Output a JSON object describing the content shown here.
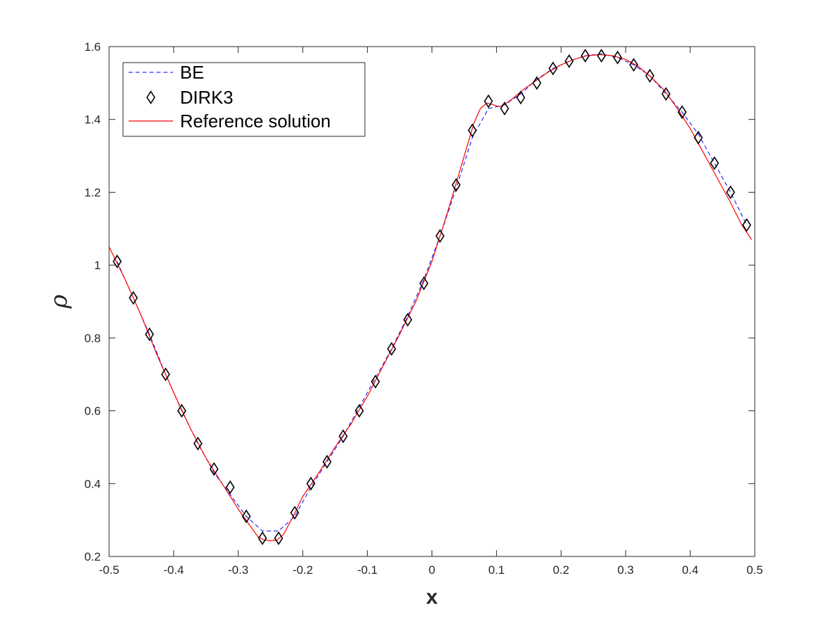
{
  "chart_data": {
    "type": "line",
    "xlabel": "x",
    "ylabel": "ρ",
    "xlim": [
      -0.5,
      0.5
    ],
    "ylim": [
      0.2,
      1.6
    ],
    "xticks": [
      "-0.5",
      "-0.4",
      "-0.3",
      "-0.2",
      "-0.1",
      "0",
      "0.1",
      "0.2",
      "0.3",
      "0.4",
      "0.5"
    ],
    "xtick_values": [
      -0.5,
      -0.4,
      -0.3,
      -0.2,
      -0.1,
      0,
      0.1,
      0.2,
      0.3,
      0.4,
      0.5
    ],
    "yticks": [
      "0.2",
      "0.4",
      "0.6",
      "0.8",
      "1",
      "1.2",
      "1.4",
      "1.6"
    ],
    "ytick_values": [
      0.2,
      0.4,
      0.6,
      0.8,
      1.0,
      1.2,
      1.4,
      1.6
    ],
    "grid": false,
    "legend_position": "top-left",
    "legend": [
      "BE",
      "DIRK3",
      "Reference solution"
    ],
    "series": [
      {
        "name": "BE",
        "style": "dashed",
        "color": "#0000ff",
        "x": [
          -0.4875,
          -0.4625,
          -0.4375,
          -0.4125,
          -0.3875,
          -0.3625,
          -0.3375,
          -0.3125,
          -0.2875,
          -0.2625,
          -0.2375,
          -0.2125,
          -0.1875,
          -0.1625,
          -0.1375,
          -0.1125,
          -0.0875,
          -0.0625,
          -0.0375,
          -0.0125,
          0.0125,
          0.0375,
          0.0625,
          0.0875,
          0.1125,
          0.1375,
          0.1625,
          0.1875,
          0.2125,
          0.2375,
          0.2625,
          0.2875,
          0.3125,
          0.3375,
          0.3625,
          0.3875,
          0.4125,
          0.4375,
          0.4625,
          0.4875
        ],
        "y": [
          1.01,
          0.91,
          0.81,
          0.7,
          0.6,
          0.51,
          0.43,
          0.37,
          0.31,
          0.27,
          0.27,
          0.31,
          0.39,
          0.46,
          0.53,
          0.61,
          0.69,
          0.77,
          0.86,
          0.96,
          1.08,
          1.21,
          1.35,
          1.43,
          1.44,
          1.47,
          1.51,
          1.54,
          1.56,
          1.575,
          1.58,
          1.57,
          1.55,
          1.52,
          1.47,
          1.42,
          1.36,
          1.28,
          1.2,
          1.11
        ]
      },
      {
        "name": "DIRK3",
        "style": "markers",
        "marker": "diamond",
        "color": "#000000",
        "x": [
          -0.4875,
          -0.4625,
          -0.4375,
          -0.4125,
          -0.3875,
          -0.3625,
          -0.3375,
          -0.3125,
          -0.2875,
          -0.2625,
          -0.2375,
          -0.2125,
          -0.1875,
          -0.1625,
          -0.1375,
          -0.1125,
          -0.0875,
          -0.0625,
          -0.0375,
          -0.0125,
          0.0125,
          0.0375,
          0.0625,
          0.0875,
          0.1125,
          0.1375,
          0.1625,
          0.1875,
          0.2125,
          0.2375,
          0.2625,
          0.2875,
          0.3125,
          0.3375,
          0.3625,
          0.3875,
          0.4125,
          0.4375,
          0.4625,
          0.4875
        ],
        "y": [
          1.01,
          0.91,
          0.81,
          0.7,
          0.6,
          0.51,
          0.44,
          0.39,
          0.31,
          0.25,
          0.25,
          0.32,
          0.4,
          0.46,
          0.53,
          0.6,
          0.68,
          0.77,
          0.85,
          0.95,
          1.08,
          1.22,
          1.37,
          1.45,
          1.43,
          1.46,
          1.5,
          1.54,
          1.56,
          1.575,
          1.575,
          1.57,
          1.55,
          1.52,
          1.47,
          1.42,
          1.35,
          1.28,
          1.2,
          1.11
        ]
      },
      {
        "name": "Reference solution",
        "style": "solid",
        "color": "#ff0000",
        "x": [
          -0.5,
          -0.475,
          -0.45,
          -0.425,
          -0.4,
          -0.375,
          -0.35,
          -0.325,
          -0.3,
          -0.28,
          -0.27,
          -0.26,
          -0.25,
          -0.24,
          -0.23,
          -0.215,
          -0.2,
          -0.175,
          -0.15,
          -0.125,
          -0.1,
          -0.075,
          -0.05,
          -0.025,
          0.0,
          0.025,
          0.05,
          0.065,
          0.075,
          0.085,
          0.095,
          0.105,
          0.12,
          0.14,
          0.16,
          0.18,
          0.2,
          0.22,
          0.24,
          0.26,
          0.28,
          0.3,
          0.32,
          0.34,
          0.36,
          0.38,
          0.4,
          0.42,
          0.44,
          0.46,
          0.48,
          0.495
        ],
        "y": [
          1.05,
          0.96,
          0.86,
          0.75,
          0.65,
          0.555,
          0.47,
          0.4,
          0.33,
          0.28,
          0.255,
          0.245,
          0.243,
          0.245,
          0.26,
          0.31,
          0.365,
          0.43,
          0.5,
          0.565,
          0.64,
          0.725,
          0.81,
          0.9,
          1.01,
          1.15,
          1.3,
          1.39,
          1.43,
          1.445,
          1.44,
          1.435,
          1.45,
          1.48,
          1.505,
          1.53,
          1.55,
          1.565,
          1.575,
          1.578,
          1.575,
          1.565,
          1.545,
          1.515,
          1.48,
          1.43,
          1.375,
          1.31,
          1.245,
          1.18,
          1.11,
          1.07
        ]
      }
    ]
  }
}
